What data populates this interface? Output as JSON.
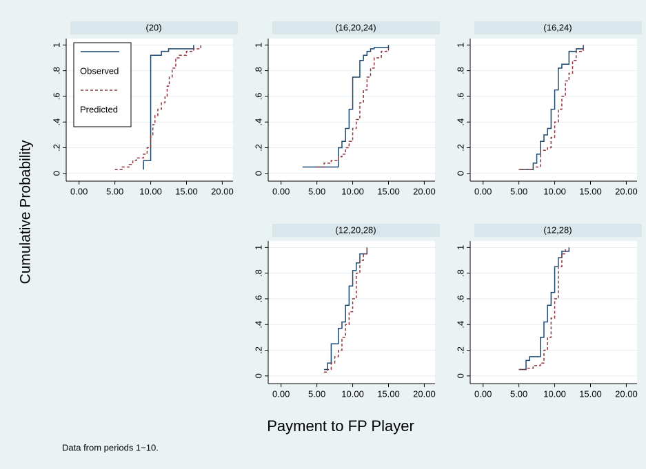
{
  "ylabel": "Cumulative Probability",
  "xlabel": "Payment to FP Player",
  "note": "Data from periods 1−10.",
  "chart_data": [
    {
      "type": "line",
      "title": "(20)",
      "legend": "top-left",
      "grid": true,
      "step": true,
      "xlim": [
        -1.8,
        21.5
      ],
      "ylim": [
        -0.06,
        1.05
      ],
      "xticks": [
        {
          "value": 0,
          "label": "0.00"
        },
        {
          "value": 5,
          "label": "5.00"
        },
        {
          "value": 10,
          "label": "10.00"
        },
        {
          "value": 15,
          "label": "15.00"
        },
        {
          "value": 20,
          "label": "20.00"
        }
      ],
      "yticks": [
        0,
        {
          "value": 0.2,
          "label": ".2"
        },
        {
          "value": 0.4,
          "label": ".4"
        },
        {
          "value": 0.6,
          "label": ".6"
        },
        {
          "value": 0.8,
          "label": ".8"
        },
        1
      ],
      "series": [
        {
          "name": "Observed",
          "color": "#1a476f",
          "dashed": false,
          "x": [
            9,
            9,
            10,
            11.5,
            12.5,
            16
          ],
          "values": [
            0.03,
            0.1,
            0.92,
            0.95,
            0.97,
            1
          ]
        },
        {
          "name": "Predicted",
          "color": "#90353b",
          "dashed": true,
          "x": [
            5,
            6,
            7,
            7.5,
            8,
            9,
            9.5,
            10,
            10.3,
            10.6,
            11,
            11.5,
            12,
            12.3,
            12.6,
            13,
            13.5,
            14,
            15,
            16,
            17
          ],
          "values": [
            0.03,
            0.05,
            0.07,
            0.1,
            0.12,
            0.15,
            0.2,
            0.3,
            0.38,
            0.45,
            0.5,
            0.55,
            0.6,
            0.68,
            0.75,
            0.82,
            0.9,
            0.92,
            0.95,
            0.97,
            1
          ]
        }
      ]
    },
    {
      "type": "line",
      "title": "(16,20,24)",
      "grid": true,
      "step": true,
      "xlim": [
        -1.8,
        21.5
      ],
      "ylim": [
        -0.06,
        1.05
      ],
      "xticks": [
        {
          "value": 0,
          "label": "0.00"
        },
        {
          "value": 5,
          "label": "5.00"
        },
        {
          "value": 10,
          "label": "10.00"
        },
        {
          "value": 15,
          "label": "15.00"
        },
        {
          "value": 20,
          "label": "20.00"
        }
      ],
      "yticks": [
        0,
        {
          "value": 0.2,
          "label": ".2"
        },
        {
          "value": 0.4,
          "label": ".4"
        },
        {
          "value": 0.6,
          "label": ".6"
        },
        {
          "value": 0.8,
          "label": ".8"
        },
        1
      ],
      "series": [
        {
          "name": "Observed",
          "color": "#1a476f",
          "dashed": false,
          "x": [
            3,
            8,
            8.5,
            9,
            9.5,
            10,
            11,
            11.5,
            12,
            12.5,
            13,
            15
          ],
          "values": [
            0.05,
            0.2,
            0.25,
            0.35,
            0.5,
            0.75,
            0.88,
            0.92,
            0.95,
            0.97,
            0.98,
            1
          ]
        },
        {
          "name": "Predicted",
          "color": "#90353b",
          "dashed": true,
          "x": [
            5,
            6,
            7,
            8,
            8.5,
            9,
            9.5,
            10,
            10.5,
            11,
            11.5,
            12,
            12.5,
            13,
            14,
            15
          ],
          "values": [
            0.05,
            0.08,
            0.1,
            0.13,
            0.15,
            0.2,
            0.25,
            0.35,
            0.42,
            0.55,
            0.65,
            0.75,
            0.82,
            0.9,
            0.95,
            1
          ]
        }
      ]
    },
    {
      "type": "line",
      "title": "(16,24)",
      "grid": true,
      "step": true,
      "xlim": [
        -1.8,
        21.5
      ],
      "ylim": [
        -0.06,
        1.05
      ],
      "xticks": [
        {
          "value": 0,
          "label": "0.00"
        },
        {
          "value": 5,
          "label": "5.00"
        },
        {
          "value": 10,
          "label": "10.00"
        },
        {
          "value": 15,
          "label": "15.00"
        },
        {
          "value": 20,
          "label": "20.00"
        }
      ],
      "yticks": [
        0,
        {
          "value": 0.2,
          "label": ".2"
        },
        {
          "value": 0.4,
          "label": ".4"
        },
        {
          "value": 0.6,
          "label": ".6"
        },
        {
          "value": 0.8,
          "label": ".8"
        },
        1
      ],
      "series": [
        {
          "name": "Observed",
          "color": "#1a476f",
          "dashed": false,
          "x": [
            5,
            7,
            7.5,
            8,
            8.5,
            9,
            9.5,
            10,
            10.5,
            11,
            12,
            13,
            14
          ],
          "values": [
            0.03,
            0.08,
            0.15,
            0.25,
            0.3,
            0.35,
            0.5,
            0.65,
            0.82,
            0.85,
            0.95,
            0.97,
            1
          ]
        },
        {
          "name": "Predicted",
          "color": "#90353b",
          "dashed": true,
          "x": [
            5,
            7,
            8,
            9,
            9.5,
            10,
            10.5,
            11,
            11.5,
            12,
            12.5,
            13,
            14
          ],
          "values": [
            0.03,
            0.05,
            0.18,
            0.2,
            0.28,
            0.4,
            0.5,
            0.6,
            0.72,
            0.78,
            0.88,
            0.95,
            1
          ]
        }
      ]
    },
    {
      "type": "line",
      "title": "(12,20,28)",
      "grid": true,
      "step": true,
      "xlim": [
        -1.8,
        21.5
      ],
      "ylim": [
        -0.06,
        1.05
      ],
      "xticks": [
        {
          "value": 0,
          "label": "0.00"
        },
        {
          "value": 5,
          "label": "5.00"
        },
        {
          "value": 10,
          "label": "10.00"
        },
        {
          "value": 15,
          "label": "15.00"
        },
        {
          "value": 20,
          "label": "20.00"
        }
      ],
      "yticks": [
        0,
        {
          "value": 0.2,
          "label": ".2"
        },
        {
          "value": 0.4,
          "label": ".4"
        },
        {
          "value": 0.6,
          "label": ".6"
        },
        {
          "value": 0.8,
          "label": ".8"
        },
        1
      ],
      "series": [
        {
          "name": "Observed",
          "color": "#1a476f",
          "dashed": false,
          "x": [
            6,
            6.5,
            7,
            8,
            8.5,
            9,
            9.5,
            10,
            10.5,
            11,
            12
          ],
          "values": [
            0.05,
            0.1,
            0.25,
            0.37,
            0.42,
            0.55,
            0.7,
            0.82,
            0.88,
            0.95,
            1
          ]
        },
        {
          "name": "Predicted",
          "color": "#90353b",
          "dashed": true,
          "x": [
            6,
            6.5,
            7,
            7.5,
            8,
            8.5,
            9,
            9.5,
            10,
            10.5,
            11,
            11.5,
            12
          ],
          "values": [
            0.03,
            0.05,
            0.1,
            0.15,
            0.2,
            0.3,
            0.4,
            0.5,
            0.6,
            0.8,
            0.9,
            0.95,
            1
          ]
        }
      ]
    },
    {
      "type": "line",
      "title": "(12,28)",
      "grid": true,
      "step": true,
      "xlim": [
        -1.8,
        21.5
      ],
      "ylim": [
        -0.06,
        1.05
      ],
      "xticks": [
        {
          "value": 0,
          "label": "0.00"
        },
        {
          "value": 5,
          "label": "5.00"
        },
        {
          "value": 10,
          "label": "10.00"
        },
        {
          "value": 15,
          "label": "15.00"
        },
        {
          "value": 20,
          "label": "20.00"
        }
      ],
      "yticks": [
        0,
        {
          "value": 0.2,
          "label": ".2"
        },
        {
          "value": 0.4,
          "label": ".4"
        },
        {
          "value": 0.6,
          "label": ".6"
        },
        {
          "value": 0.8,
          "label": ".8"
        },
        1
      ],
      "series": [
        {
          "name": "Observed",
          "color": "#1a476f",
          "dashed": false,
          "x": [
            5,
            6,
            6.5,
            7,
            8,
            8.5,
            9,
            9.5,
            10,
            10.5,
            11,
            12
          ],
          "values": [
            0.05,
            0.12,
            0.15,
            0.15,
            0.3,
            0.42,
            0.55,
            0.65,
            0.85,
            0.92,
            0.97,
            1
          ]
        },
        {
          "name": "Predicted",
          "color": "#90353b",
          "dashed": true,
          "x": [
            5,
            6,
            7,
            8,
            8.5,
            9,
            9.5,
            10,
            10.5,
            11,
            11.5
          ],
          "values": [
            0.05,
            0.06,
            0.08,
            0.1,
            0.2,
            0.3,
            0.45,
            0.6,
            0.85,
            0.95,
            1
          ]
        }
      ]
    }
  ]
}
